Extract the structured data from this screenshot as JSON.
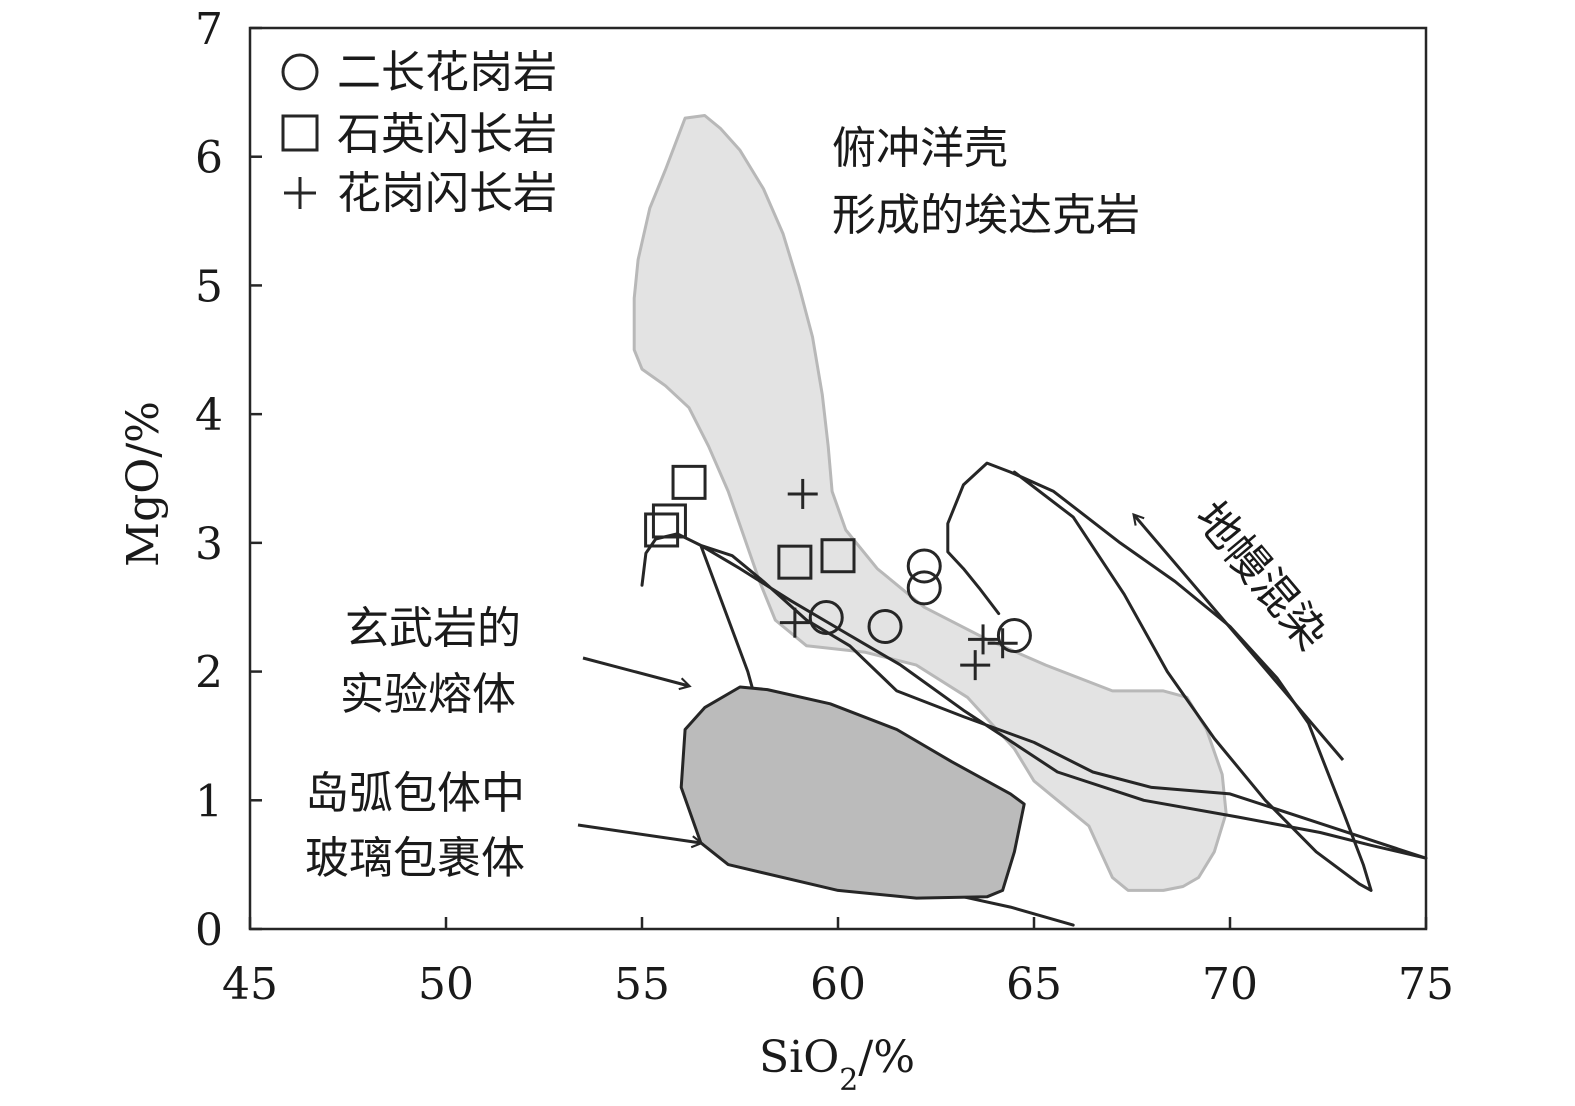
{
  "chart_data": {
    "type": "scatter",
    "xlabel": "SiO₂/%",
    "ylabel": "MgO/%",
    "xlim": [
      45,
      75
    ],
    "ylim": [
      0,
      7
    ],
    "xticks": [
      45,
      50,
      55,
      60,
      65,
      70,
      75
    ],
    "yticks": [
      0,
      1,
      2,
      3,
      4,
      5,
      6,
      7
    ],
    "grid": false,
    "legend_position": "top-left",
    "series": [
      {
        "name": "二长花岗岩",
        "marker": "circle",
        "points": [
          [
            59.7,
            2.42
          ],
          [
            61.2,
            2.35
          ],
          [
            62.2,
            2.82
          ],
          [
            62.2,
            2.65
          ],
          [
            64.5,
            2.28
          ]
        ]
      },
      {
        "name": "石英闪长岩",
        "marker": "square",
        "points": [
          [
            56.2,
            3.47
          ],
          [
            55.7,
            3.17
          ],
          [
            55.5,
            3.1
          ],
          [
            58.9,
            2.85
          ],
          [
            60.0,
            2.9
          ]
        ]
      },
      {
        "name": "花岗闪长岩",
        "marker": "plus",
        "points": [
          [
            59.1,
            3.38
          ],
          [
            58.9,
            2.38
          ],
          [
            63.7,
            2.25
          ],
          [
            63.5,
            2.05
          ],
          [
            64.2,
            2.22
          ]
        ]
      }
    ],
    "regions": [
      {
        "name": "俯冲洋壳形成的埃达克岩",
        "fill": "#e3e3e3",
        "stroke": "#b8b8b8",
        "points": [
          [
            56.1,
            6.3
          ],
          [
            56.6,
            6.32
          ],
          [
            57.0,
            6.22
          ],
          [
            57.5,
            6.05
          ],
          [
            58.1,
            5.75
          ],
          [
            58.6,
            5.4
          ],
          [
            59.0,
            5.0
          ],
          [
            59.35,
            4.6
          ],
          [
            59.6,
            4.15
          ],
          [
            59.75,
            3.75
          ],
          [
            59.85,
            3.4
          ],
          [
            60.2,
            3.1
          ],
          [
            61.0,
            2.8
          ],
          [
            62.2,
            2.5
          ],
          [
            63.8,
            2.25
          ],
          [
            65.3,
            2.05
          ],
          [
            67.0,
            1.85
          ],
          [
            68.3,
            1.85
          ],
          [
            68.9,
            1.8
          ],
          [
            69.4,
            1.55
          ],
          [
            69.8,
            1.2
          ],
          [
            69.9,
            0.9
          ],
          [
            69.6,
            0.6
          ],
          [
            69.2,
            0.4
          ],
          [
            68.8,
            0.33
          ],
          [
            68.3,
            0.3
          ],
          [
            67.4,
            0.3
          ],
          [
            67.0,
            0.4
          ],
          [
            66.7,
            0.6
          ],
          [
            66.4,
            0.8
          ],
          [
            65.6,
            1.0
          ],
          [
            65.0,
            1.15
          ],
          [
            64.5,
            1.4
          ],
          [
            63.3,
            1.8
          ],
          [
            62.0,
            2.05
          ],
          [
            60.7,
            2.15
          ],
          [
            59.2,
            2.2
          ],
          [
            58.4,
            2.4
          ],
          [
            58.0,
            2.7
          ],
          [
            57.6,
            3.05
          ],
          [
            57.2,
            3.4
          ],
          [
            56.7,
            3.75
          ],
          [
            56.2,
            4.05
          ],
          [
            55.6,
            4.22
          ],
          [
            55.0,
            4.35
          ],
          [
            54.8,
            4.5
          ],
          [
            54.8,
            4.9
          ],
          [
            54.9,
            5.2
          ],
          [
            55.2,
            5.6
          ],
          [
            55.6,
            5.9
          ],
          [
            56.1,
            6.3
          ]
        ]
      },
      {
        "name": "玄武岩的实验熔体",
        "fill": "none",
        "stroke": "#262626",
        "points": [
          [
            55.0,
            2.67
          ],
          [
            55.1,
            2.92
          ],
          [
            55.35,
            3.03
          ],
          [
            55.9,
            3.07
          ],
          [
            56.5,
            2.98
          ],
          [
            57.5,
            2.8
          ],
          [
            58.8,
            2.55
          ],
          [
            60.2,
            2.3
          ],
          [
            61.6,
            2.05
          ],
          [
            63.2,
            1.7
          ],
          [
            64.3,
            1.48
          ],
          [
            65.6,
            1.22
          ],
          [
            67.8,
            1.0
          ],
          [
            70.2,
            0.87
          ],
          [
            72.3,
            0.75
          ],
          [
            73.6,
            0.65
          ],
          [
            75.0,
            0.55
          ],
          [
            73.3,
            0.72
          ],
          [
            72.0,
            0.85
          ],
          [
            70.0,
            1.05
          ],
          [
            68.0,
            1.1
          ],
          [
            66.5,
            1.22
          ],
          [
            65.0,
            1.45
          ],
          [
            63.2,
            1.65
          ],
          [
            61.5,
            1.85
          ],
          [
            60.3,
            2.2
          ],
          [
            59.2,
            2.4
          ],
          [
            58.1,
            2.7
          ],
          [
            57.3,
            2.9
          ],
          [
            56.5,
            2.98
          ],
          [
            57.7,
            2.0
          ],
          [
            58.2,
            1.45
          ],
          [
            59.1,
            0.95
          ],
          [
            60.3,
            0.55
          ],
          [
            61.1,
            0.37
          ],
          [
            62.0,
            0.33
          ],
          [
            63.2,
            0.25
          ],
          [
            64.4,
            0.17
          ],
          [
            66.0,
            0.03
          ]
        ]
      },
      {
        "name": "岛弧包体中玻璃包裹体",
        "fill": "#bbbbbb",
        "stroke": "#262626",
        "points": [
          [
            57.5,
            1.88
          ],
          [
            58.2,
            1.86
          ],
          [
            59.8,
            1.75
          ],
          [
            61.5,
            1.55
          ],
          [
            62.9,
            1.3
          ],
          [
            64.4,
            1.05
          ],
          [
            64.75,
            0.97
          ],
          [
            64.5,
            0.6
          ],
          [
            64.2,
            0.3
          ],
          [
            63.8,
            0.25
          ],
          [
            62.0,
            0.24
          ],
          [
            60.0,
            0.3
          ],
          [
            57.2,
            0.5
          ],
          [
            56.5,
            0.67
          ],
          [
            56.0,
            1.1
          ],
          [
            56.1,
            1.55
          ],
          [
            56.6,
            1.72
          ],
          [
            57.5,
            1.88
          ]
        ]
      },
      {
        "name": "地幔混染 field",
        "fill": "none",
        "stroke": "#262626",
        "points": [
          [
            64.5,
            3.55
          ],
          [
            66.0,
            3.2
          ],
          [
            67.3,
            2.6
          ],
          [
            68.4,
            2.0
          ],
          [
            69.6,
            1.48
          ],
          [
            70.9,
            1.0
          ],
          [
            72.2,
            0.6
          ],
          [
            73.3,
            0.35
          ],
          [
            73.6,
            0.3
          ],
          [
            73.4,
            0.5
          ],
          [
            72.9,
            0.9
          ],
          [
            72.0,
            1.6
          ],
          [
            71.2,
            1.95
          ],
          [
            70.0,
            2.35
          ],
          [
            68.6,
            2.7
          ],
          [
            67.2,
            3.0
          ],
          [
            65.5,
            3.4
          ],
          [
            64.4,
            3.55
          ],
          [
            63.8,
            3.62
          ],
          [
            63.2,
            3.45
          ],
          [
            62.8,
            3.15
          ],
          [
            62.8,
            2.93
          ],
          [
            63.2,
            2.8
          ],
          [
            63.6,
            2.65
          ],
          [
            64.1,
            2.45
          ]
        ]
      }
    ],
    "annotations": [
      {
        "label": "俯冲洋壳",
        "line2": "形成的埃达克岩"
      },
      {
        "label": "玄武岩的",
        "line2": "实验熔体",
        "arrow": true
      },
      {
        "label": "岛弧包体中",
        "line2": "玻璃包裹体",
        "arrow": true
      },
      {
        "label": "地幔混染",
        "arrow": "up-left"
      }
    ]
  }
}
